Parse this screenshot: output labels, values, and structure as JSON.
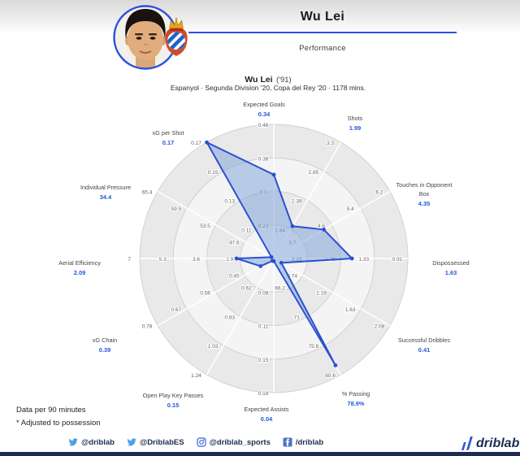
{
  "header": {
    "title": "Wu Lei",
    "subtitle": "Performance"
  },
  "player": {
    "name": "Wu Lei",
    "suffix": "('91)",
    "context": "Espanyol · Segunda Division '20, Copa del Rey '20 · 1178 mins."
  },
  "chart_data": {
    "type": "radar",
    "rings_fraction": [
      0.25,
      0.5,
      0.75,
      1.0
    ],
    "axes": [
      {
        "label": "Expected Goals",
        "value": "0.34",
        "rings": [
          "0.23",
          "0.3",
          "0.38",
          "0.46"
        ],
        "radius_fraction": 0.625
      },
      {
        "label": "Shots",
        "value": "1.99",
        "rings": [
          "1.94",
          "2.39",
          "2.85",
          "3.3"
        ],
        "radius_fraction": 0.278
      },
      {
        "label": "Touches in Opponent Box",
        "value": "4.35",
        "rings": [
          "3.7",
          "4.6",
          "5.4",
          "6.2"
        ],
        "radius_fraction": 0.431
      },
      {
        "label": "Dispossessed",
        "value": "1.63",
        "rings": [
          "2.23",
          "1.78",
          "1.33",
          "0.91"
        ],
        "radius_fraction": 0.583
      },
      {
        "label": "Successful Dribbles",
        "value": "0.41",
        "rings": [
          "0.74",
          "1.19",
          "1.63",
          "2.08"
        ],
        "radius_fraction": 0.065
      },
      {
        "label": "% Passing",
        "value": "78.9%",
        "rings": [
          "66.2",
          "71",
          "75.8",
          "80.6"
        ],
        "radius_fraction": 0.92
      },
      {
        "label": "Expected Assists",
        "value": "0.04",
        "rings": [
          "0.08",
          "0.11",
          "0.15",
          "0.18"
        ],
        "radius_fraction": 0.02
      },
      {
        "label": "Open Play Key Passes",
        "value": "0.15",
        "rings": [
          "0.62",
          "0.83",
          "1.03",
          "1.24"
        ],
        "radius_fraction": 0.02
      },
      {
        "label": "xG Chain",
        "value": "0.39",
        "rings": [
          "0.45",
          "0.56",
          "0.67",
          "0.78"
        ],
        "radius_fraction": 0.114
      },
      {
        "label": "Aerial Efficiency",
        "value": "2.09",
        "rings": [
          "1.9",
          "3.6",
          "5.3",
          "7"
        ],
        "radius_fraction": 0.278
      },
      {
        "label": "Individual Pressure",
        "value": "34.4",
        "rings": [
          "47.6",
          "53.5",
          "59.5",
          "65.4"
        ],
        "radius_fraction": 0.02
      },
      {
        "label": "xG per Shot",
        "value": "0.17",
        "rings": [
          "0.11",
          "0.13",
          "0.15",
          "0.17"
        ],
        "radius_fraction": 1.0
      }
    ]
  },
  "notes": {
    "line1": "Data per 90 minutes",
    "line2": "* Adjusted to possession"
  },
  "social": {
    "items": [
      {
        "icon": "twitter-icon",
        "handle": "@driblab"
      },
      {
        "icon": "twitter-icon",
        "handle": "@DriblabES"
      },
      {
        "icon": "instagram-icon",
        "handle": "@driblab_sports"
      },
      {
        "icon": "facebook-icon",
        "handle": "/driblab"
      }
    ]
  },
  "brand": {
    "logo_text": "driblab"
  },
  "colors": {
    "accent": "#2b50d0",
    "value_text": "#2456dd",
    "header_line": "#2b50e0",
    "polygon_fill": "#7a9fd8",
    "band_dark": "#e9e9e9",
    "band_light": "#f4f4f4",
    "ring_stroke": "#cfcfcf",
    "navy": "#1d2b50",
    "twitter_blue": "#4da0e4"
  }
}
